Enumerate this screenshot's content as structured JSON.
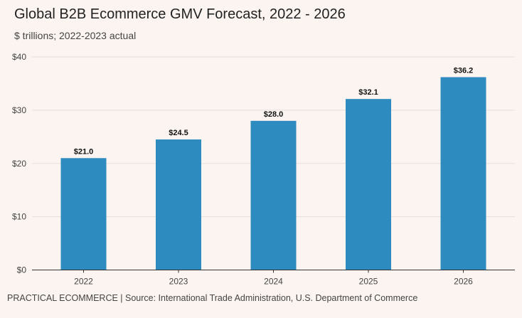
{
  "chart_data": {
    "type": "bar",
    "title": "Global B2B Ecommerce GMV Forecast, 2022 - 2026",
    "subtitle": "$ trillions; 2022-2023 actual",
    "categories": [
      "2022",
      "2023",
      "2024",
      "2025",
      "2026"
    ],
    "values": [
      21.0,
      24.5,
      28.0,
      32.1,
      36.2
    ],
    "data_labels": [
      "$21.0",
      "$24.5",
      "$28.0",
      "$32.1",
      "$36.2"
    ],
    "ylim": [
      0,
      40
    ],
    "yticks": [
      0,
      10,
      20,
      30,
      40
    ],
    "ytick_labels": [
      "$0",
      "$10",
      "$20",
      "$30",
      "$40"
    ],
    "xlabel": "",
    "ylabel": "",
    "grid": true,
    "bar_color": "#2e8bc0",
    "grid_color": "#e6dedb"
  },
  "footer": "PRACTICAL ECOMMERCE | Source: International Trade Administration, U.S. Department of Commerce"
}
